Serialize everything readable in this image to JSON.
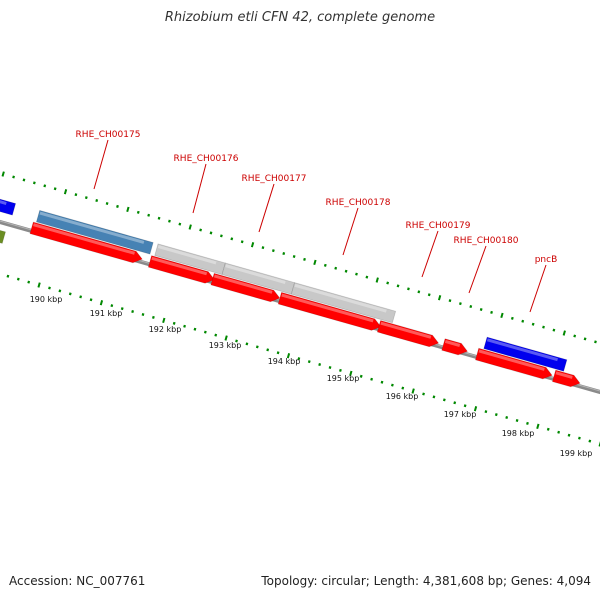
{
  "title": "Rhizobium etli CFN 42, complete genome",
  "footer": {
    "accession": "Accession: NC_007761",
    "topology": "Topology: circular; Length: 4,381,608 bp; Genes: 4,094"
  },
  "colors": {
    "gene_red": "#ff0000",
    "gene_label": "#cc0000",
    "steel_blue": "#4682b4",
    "blue": "#0000ee",
    "light_gray": "#c8c8c8",
    "olive": "#6b8e23",
    "tick_green": "#008800",
    "backbone": "#777777"
  },
  "gene_labels": [
    "RHE_CH00175",
    "RHE_CH00176",
    "RHE_CH00177",
    "RHE_CH00178",
    "RHE_CH00179",
    "RHE_CH00180",
    "pncB"
  ],
  "kbp_labels": [
    "190 kbp",
    "191 kbp",
    "192 kbp",
    "193 kbp",
    "194 kbp",
    "195 kbp",
    "196 kbp",
    "197 kbp",
    "198 kbp",
    "199 kbp"
  ]
}
